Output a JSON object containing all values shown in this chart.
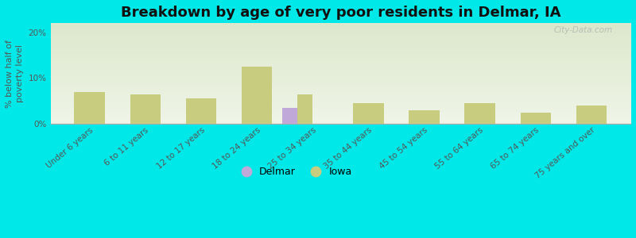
{
  "title": "Breakdown by age of very poor residents in Delmar, IA",
  "ylabel": "% below half of\npoverty level",
  "categories": [
    "Under 6 years",
    "6 to 11 years",
    "12 to 17 years",
    "18 to 24 years",
    "25 to 34 years",
    "35 to 44 years",
    "45 to 54 years",
    "55 to 64 years",
    "65 to 74 years",
    "75 years and over"
  ],
  "iowa_values": [
    7.0,
    6.5,
    5.5,
    12.5,
    6.5,
    4.5,
    3.0,
    4.5,
    2.5,
    4.0
  ],
  "delmar_values": [
    0,
    0,
    0,
    0,
    3.5,
    0,
    0,
    0,
    0,
    0
  ],
  "iowa_color": "#c8cc7f",
  "delmar_color": "#c0a8d8",
  "background_outer": "#00e8e8",
  "background_inner_top": "#dce8cc",
  "background_inner_bottom": "#f0f5e8",
  "ylim": [
    0,
    22
  ],
  "yticks": [
    0,
    10,
    20
  ],
  "ytick_labels": [
    "0%",
    "10%",
    "20%"
  ],
  "bar_width": 0.55,
  "title_fontsize": 13,
  "axis_label_fontsize": 8,
  "tick_fontsize": 7.5,
  "legend_fontsize": 9,
  "watermark": "City-Data.com"
}
